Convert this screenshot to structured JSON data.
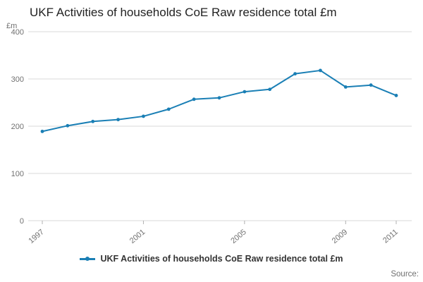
{
  "page": {
    "source_label": "Source:"
  },
  "chart_data": {
    "type": "line",
    "title": "UKF Activities of households CoE Raw residence total £m",
    "ylabel": "£m",
    "x": [
      1997,
      1998,
      1999,
      2000,
      2001,
      2002,
      2003,
      2004,
      2005,
      2006,
      2007,
      2008,
      2009,
      2010,
      2011
    ],
    "values": [
      189,
      201,
      210,
      214,
      221,
      236,
      257,
      260,
      273,
      278,
      311,
      318,
      283,
      287,
      265
    ],
    "ylim": [
      0,
      400
    ],
    "yticks": [
      0,
      100,
      200,
      300,
      400
    ],
    "xticks": [
      1997,
      2001,
      2005,
      2009,
      2011
    ],
    "legend": "UKF Activities of households CoE Raw residence total £m",
    "legend_position": "bottom",
    "grid": true,
    "line_color": "#1a7fb5",
    "tick_label_color": "#707070",
    "grid_color": "#d9d9d9",
    "axis_tick_color": "#b0b0b0"
  }
}
